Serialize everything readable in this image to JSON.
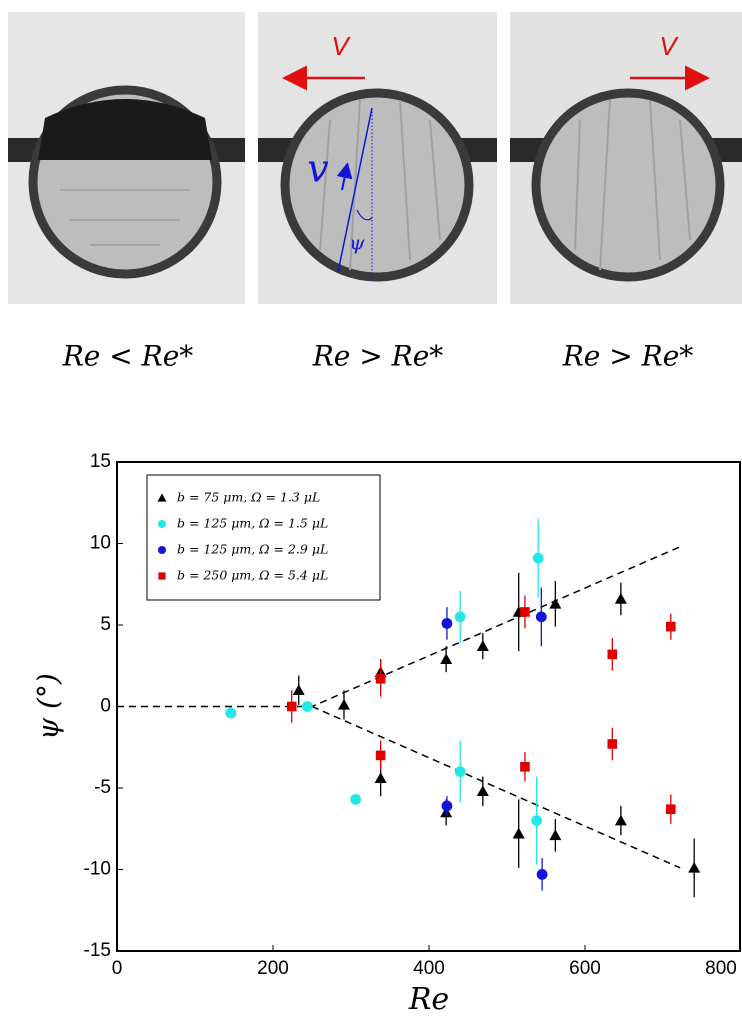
{
  "panels": [
    {
      "label": "Re < Re*"
    },
    {
      "arrow_label": "V",
      "velocity_label": "v",
      "angle_label": "ψ",
      "label": "Re > Re*"
    },
    {
      "arrow_label": "V",
      "label": "Re > Re*"
    }
  ],
  "chart_data": {
    "type": "scatter",
    "xlabel": "Re",
    "ylabel": "ψ (°)",
    "xlim": [
      0,
      800
    ],
    "ylim": [
      -15,
      15
    ],
    "xticks": [
      0,
      200,
      400,
      600,
      800
    ],
    "yticks": [
      -15,
      -10,
      -5,
      0,
      5,
      10,
      15
    ],
    "legend": "upper left",
    "series": [
      {
        "name": "b = 75 μm,  Ω = 1.3 μL",
        "color": "#000000",
        "marker": "triangle",
        "x": [
          233,
          291,
          338,
          422,
          469,
          515,
          562,
          646,
          338,
          422,
          469,
          515,
          562,
          646,
          740
        ],
        "values": [
          1.0,
          0.1,
          2.1,
          2.9,
          3.7,
          5.8,
          6.3,
          6.6,
          -4.4,
          -6.5,
          -5.2,
          -7.8,
          -7.9,
          -7.0,
          -9.9
        ],
        "errors": [
          0.9,
          0.9,
          0.8,
          0.8,
          0.8,
          2.4,
          1.4,
          1.0,
          1.1,
          0.8,
          0.9,
          2.1,
          1.0,
          0.9,
          1.8
        ]
      },
      {
        "name": "b = 125 μm, Ω = 1.5 μL",
        "color": "#22e8e8",
        "marker": "circle",
        "x": [
          146,
          244,
          306,
          440,
          440,
          540,
          538
        ],
        "values": [
          -0.4,
          0,
          -5.7,
          5.5,
          -4.0,
          9.1,
          -7.0
        ],
        "errors": [
          null,
          null,
          null,
          1.6,
          1.9,
          2.4,
          2.7
        ]
      },
      {
        "name": "b = 125 μm, Ω = 2.9 μL",
        "color": "#1414d8",
        "marker": "circle",
        "x": [
          423,
          544,
          423,
          545
        ],
        "values": [
          5.1,
          5.5,
          -6.1,
          -10.3
        ],
        "errors": [
          1.0,
          1.8,
          0.6,
          1.0
        ]
      },
      {
        "name": "b = 250 μm, Ω = 5.4 μL",
        "color": "#e00000",
        "marker": "square",
        "x": [
          224,
          338,
          338,
          523,
          523,
          635,
          635,
          710,
          710
        ],
        "values": [
          0,
          1.7,
          -3.0,
          5.8,
          -3.7,
          3.2,
          -2.3,
          4.9,
          -6.3
        ],
        "errors": [
          1.0,
          1.1,
          0.9,
          1.0,
          0.9,
          1.0,
          1.0,
          0.8,
          0.9
        ]
      }
    ],
    "fit_lines": [
      {
        "x": [
          0,
          250,
          722
        ],
        "y": [
          0,
          0,
          9.8
        ]
      },
      {
        "x": [
          250,
          722
        ],
        "y": [
          0,
          -9.9
        ]
      }
    ],
    "fit_line_style": "dashed"
  }
}
